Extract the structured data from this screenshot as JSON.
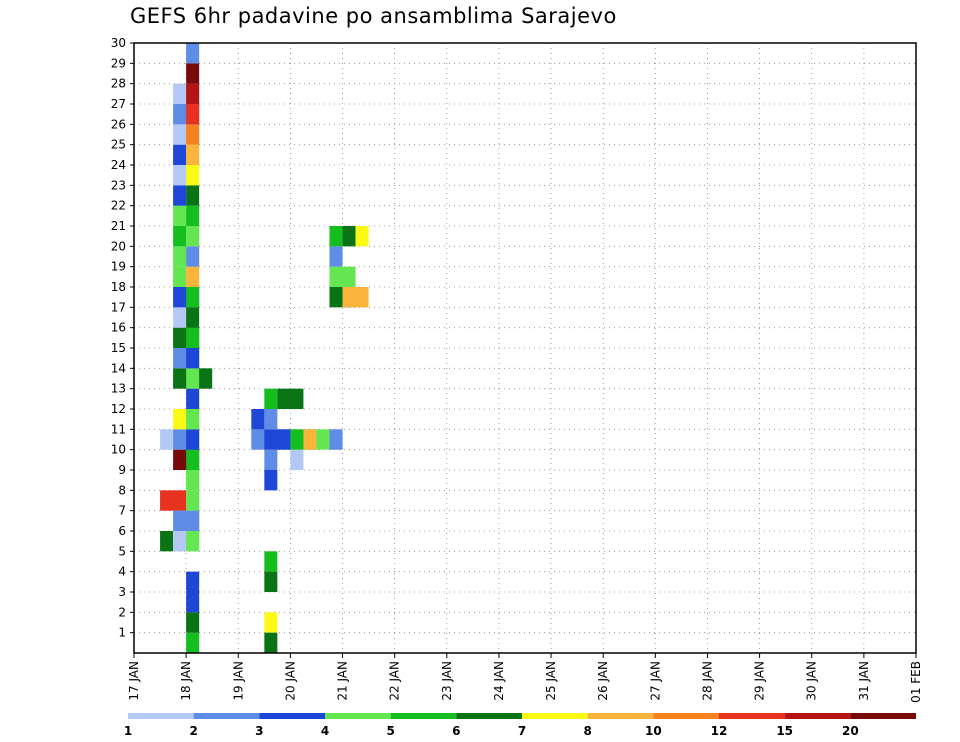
{
  "chart_data": {
    "type": "heatmap",
    "title": "GEFS 6hr padavine po ansamblima Sarajevo",
    "x_tick_labels": [
      "17 JAN",
      "18 JAN",
      "19 JAN",
      "20 JAN",
      "21 JAN",
      "22 JAN",
      "23 JAN",
      "24 JAN",
      "25 JAN",
      "26 JAN",
      "27 JAN",
      "28 JAN",
      "29 JAN",
      "30 JAN",
      "31 JAN",
      "01 FEB"
    ],
    "y_tick_labels": [
      "1",
      "2",
      "3",
      "4",
      "5",
      "6",
      "7",
      "8",
      "9",
      "10",
      "11",
      "12",
      "13",
      "14",
      "15",
      "16",
      "17",
      "18",
      "19",
      "20",
      "21",
      "22",
      "23",
      "24",
      "25",
      "26",
      "27",
      "28",
      "29",
      "30"
    ],
    "ylim": [
      0,
      30
    ],
    "grid": true,
    "colorbar": {
      "levels": [
        "1",
        "2",
        "3",
        "4",
        "5",
        "6",
        "7",
        "8",
        "10",
        "12",
        "15",
        "20"
      ],
      "colors": [
        "#b4c8f5",
        "#5f8ce6",
        "#1e46d7",
        "#64e650",
        "#14be1e",
        "#0a7314",
        "#fafa14",
        "#fab43c",
        "#f5821e",
        "#e6321e",
        "#b41414",
        "#780a0a"
      ],
      "placement": "bottom"
    },
    "values": [
      [
        2,
        6,
        1,
        6,
        0,
        3
      ],
      [
        2,
        8,
        2,
        10,
        0,
        9
      ],
      [
        2,
        11,
        1,
        1
      ],
      [
        3,
        6,
        2,
        1
      ],
      [
        3,
        7,
        2,
        2
      ],
      [
        3,
        10,
        2,
        12
      ],
      [
        3,
        11,
        2,
        2
      ],
      [
        3,
        12,
        2,
        7
      ],
      [
        3,
        14,
        3,
        6
      ],
      [
        3,
        15,
        2,
        2
      ],
      [
        3,
        16,
        2,
        6
      ],
      [
        3,
        17,
        1,
        1
      ],
      [
        3,
        18,
        2,
        3
      ],
      [
        3,
        19,
        1,
        4
      ],
      [
        3,
        20,
        1,
        4
      ],
      [
        3,
        21,
        1,
        5
      ],
      [
        3,
        22,
        1,
        4
      ],
      [
        3,
        23,
        1,
        3
      ],
      [
        3,
        24,
        1,
        1
      ],
      [
        3,
        25,
        1,
        3
      ],
      [
        3,
        26,
        1,
        1
      ],
      [
        3,
        27,
        2,
        2
      ],
      [
        3,
        28,
        2,
        1
      ],
      [
        4,
        1,
        1,
        5
      ],
      [
        4,
        2,
        1,
        6
      ],
      [
        4,
        3,
        1,
        3
      ],
      [
        4,
        4,
        1,
        3
      ],
      [
        4,
        6,
        1,
        4
      ],
      [
        4,
        7,
        1,
        2
      ],
      [
        4,
        8,
        1,
        4
      ],
      [
        4,
        9,
        1,
        4
      ],
      [
        4,
        10,
        1,
        5
      ],
      [
        4,
        11,
        1,
        3
      ],
      [
        4,
        12,
        1,
        4
      ],
      [
        4,
        13,
        1,
        3
      ],
      [
        4,
        14,
        1,
        4
      ],
      [
        4,
        15,
        1,
        3
      ],
      [
        4,
        16,
        1,
        5
      ],
      [
        4,
        17,
        1,
        6
      ],
      [
        4,
        18,
        1,
        5
      ],
      [
        4,
        19,
        1,
        8
      ],
      [
        4,
        20,
        1,
        2
      ],
      [
        4,
        21,
        1,
        4
      ],
      [
        4,
        22,
        1,
        5
      ],
      [
        4,
        23,
        1,
        6
      ],
      [
        4,
        24,
        1,
        7
      ],
      [
        4,
        25,
        1,
        8
      ],
      [
        4,
        26,
        1,
        9
      ],
      [
        4,
        27,
        1,
        10
      ],
      [
        4,
        28,
        1,
        11
      ],
      [
        4,
        29,
        1,
        12
      ],
      [
        4,
        30,
        1,
        2
      ],
      [
        9,
        11,
        3,
        2
      ],
      [
        10,
        11,
        2,
        3
      ],
      [
        10,
        12,
        1,
        2
      ],
      [
        10,
        13,
        1,
        5
      ],
      [
        11,
        13,
        2,
        6
      ],
      [
        9,
        12,
        1,
        3
      ],
      [
        10,
        9,
        1,
        3
      ],
      [
        10,
        10,
        1,
        2
      ],
      [
        10,
        5,
        1,
        5
      ],
      [
        10,
        4,
        1,
        6
      ],
      [
        10,
        2,
        1,
        7
      ],
      [
        10,
        1,
        1,
        6
      ],
      [
        12,
        10,
        1,
        1
      ],
      [
        12,
        11,
        2,
        5
      ],
      [
        13,
        11,
        1,
        8
      ],
      [
        14,
        11,
        1,
        4
      ],
      [
        15,
        11,
        1,
        2
      ],
      [
        15,
        19,
        1,
        4
      ],
      [
        16,
        19,
        1,
        4
      ],
      [
        15,
        18,
        2,
        6
      ],
      [
        16,
        18,
        2,
        8
      ],
      [
        15,
        20,
        1,
        2
      ],
      [
        15,
        21,
        1,
        5
      ],
      [
        16,
        21,
        1,
        6
      ],
      [
        17,
        21,
        1,
        7
      ]
    ]
  }
}
